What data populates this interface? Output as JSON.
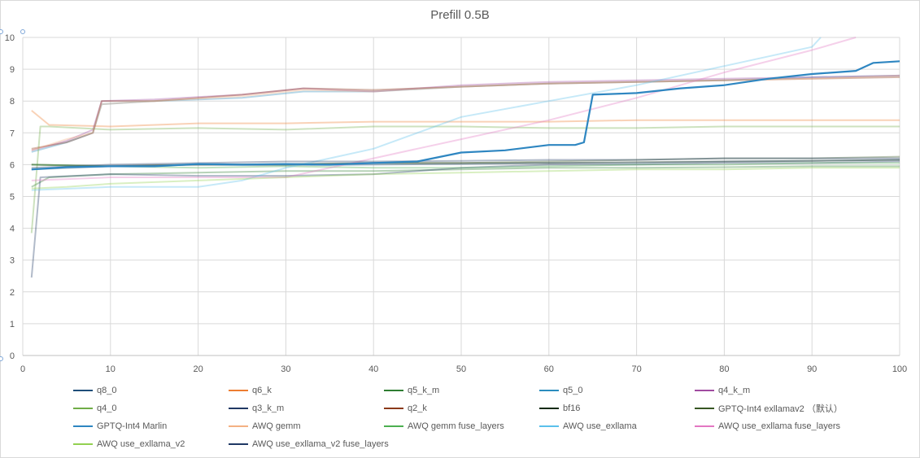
{
  "chart_data": {
    "type": "line",
    "title": "Prefill 0.5B",
    "xlabel": "",
    "ylabel": "",
    "xlim": [
      0,
      100
    ],
    "ylim": [
      0,
      10
    ],
    "x_ticks": [
      0,
      10,
      20,
      30,
      40,
      50,
      60,
      70,
      80,
      90,
      100
    ],
    "y_ticks": [
      0,
      1,
      2,
      3,
      4,
      5,
      6,
      7,
      8,
      9,
      10
    ],
    "grid": true,
    "legend_position": "bottom",
    "highlighted_series": "GPTQ-Int4 Marlin",
    "series": [
      {
        "name": "q8_0",
        "color": "#1f4e79",
        "points": [
          [
            1,
            5.85
          ],
          [
            10,
            5.95
          ],
          [
            20,
            6.0
          ],
          [
            30,
            5.98
          ],
          [
            40,
            6.0
          ],
          [
            50,
            6.02
          ],
          [
            60,
            6.05
          ],
          [
            70,
            6.05
          ],
          [
            80,
            6.1
          ],
          [
            90,
            6.12
          ],
          [
            100,
            6.15
          ]
        ]
      },
      {
        "name": "q6_k",
        "color": "#ed7d31",
        "points": [
          [
            1,
            7.7
          ],
          [
            3,
            7.25
          ],
          [
            10,
            7.2
          ],
          [
            20,
            7.3
          ],
          [
            30,
            7.3
          ],
          [
            40,
            7.35
          ],
          [
            50,
            7.35
          ],
          [
            60,
            7.35
          ],
          [
            70,
            7.4
          ],
          [
            80,
            7.4
          ],
          [
            90,
            7.4
          ],
          [
            100,
            7.4
          ]
        ]
      },
      {
        "name": "q5_k_m",
        "color": "#2e7d32",
        "points": [
          [
            1,
            5.3
          ],
          [
            3,
            5.6
          ],
          [
            10,
            5.7
          ],
          [
            20,
            5.75
          ],
          [
            30,
            5.8
          ],
          [
            40,
            5.8
          ],
          [
            50,
            5.85
          ],
          [
            60,
            5.9
          ],
          [
            70,
            5.9
          ],
          [
            80,
            5.92
          ],
          [
            90,
            5.95
          ],
          [
            100,
            5.95
          ]
        ]
      },
      {
        "name": "q5_0",
        "color": "#2b8cbe",
        "points": [
          [
            1,
            6.4
          ],
          [
            5,
            6.7
          ],
          [
            8,
            7.0
          ],
          [
            9,
            7.9
          ],
          [
            15,
            8.0
          ],
          [
            25,
            8.1
          ],
          [
            32,
            8.3
          ],
          [
            40,
            8.3
          ],
          [
            50,
            8.45
          ],
          [
            60,
            8.55
          ],
          [
            70,
            8.6
          ],
          [
            80,
            8.65
          ],
          [
            90,
            8.75
          ],
          [
            100,
            8.8
          ]
        ]
      },
      {
        "name": "q4_k_m",
        "color": "#a04ba0",
        "points": [
          [
            1,
            6.45
          ],
          [
            5,
            6.75
          ],
          [
            8,
            7.1
          ],
          [
            9,
            8.0
          ],
          [
            15,
            8.05
          ],
          [
            25,
            8.2
          ],
          [
            32,
            8.4
          ],
          [
            40,
            8.3
          ],
          [
            50,
            8.5
          ],
          [
            60,
            8.6
          ],
          [
            70,
            8.65
          ],
          [
            80,
            8.7
          ],
          [
            90,
            8.75
          ],
          [
            100,
            8.8
          ]
        ]
      },
      {
        "name": "q4_0",
        "color": "#70ad47",
        "points": [
          [
            1,
            3.85
          ],
          [
            2,
            7.2
          ],
          [
            3,
            7.2
          ],
          [
            10,
            7.1
          ],
          [
            20,
            7.15
          ],
          [
            30,
            7.1
          ],
          [
            40,
            7.2
          ],
          [
            50,
            7.2
          ],
          [
            60,
            7.15
          ],
          [
            70,
            7.15
          ],
          [
            80,
            7.2
          ],
          [
            90,
            7.2
          ],
          [
            100,
            7.2
          ]
        ]
      },
      {
        "name": "q3_k_m",
        "color": "#203864",
        "points": [
          [
            1,
            2.45
          ],
          [
            2,
            5.6
          ],
          [
            10,
            5.7
          ],
          [
            20,
            5.65
          ],
          [
            30,
            5.65
          ],
          [
            40,
            5.7
          ],
          [
            50,
            5.9
          ],
          [
            60,
            6.0
          ],
          [
            70,
            6.0
          ],
          [
            80,
            6.05
          ],
          [
            90,
            6.05
          ],
          [
            100,
            6.1
          ]
        ]
      },
      {
        "name": "q2_k",
        "color": "#8b3a1a",
        "points": [
          [
            1,
            6.5
          ],
          [
            5,
            6.7
          ],
          [
            8,
            7.0
          ],
          [
            9,
            8.0
          ],
          [
            15,
            8.0
          ],
          [
            25,
            8.2
          ],
          [
            32,
            8.4
          ],
          [
            40,
            8.35
          ],
          [
            50,
            8.45
          ],
          [
            60,
            8.55
          ],
          [
            70,
            8.6
          ],
          [
            80,
            8.65
          ],
          [
            90,
            8.7
          ],
          [
            100,
            8.75
          ]
        ]
      },
      {
        "name": "bf16",
        "color": "#102a10",
        "points": [
          [
            1,
            6.0
          ],
          [
            10,
            5.95
          ],
          [
            20,
            6.0
          ],
          [
            30,
            6.02
          ],
          [
            40,
            6.05
          ],
          [
            50,
            6.05
          ],
          [
            60,
            6.05
          ],
          [
            70,
            6.08
          ],
          [
            80,
            6.1
          ],
          [
            90,
            6.12
          ],
          [
            100,
            6.15
          ]
        ]
      },
      {
        "name": "GPTQ-Int4 exllamav2 （默认）",
        "color": "#375623",
        "points": [
          [
            1,
            6.0
          ],
          [
            10,
            5.95
          ],
          [
            20,
            6.0
          ],
          [
            30,
            6.0
          ],
          [
            40,
            6.05
          ],
          [
            50,
            6.05
          ],
          [
            60,
            6.1
          ],
          [
            70,
            6.15
          ],
          [
            80,
            6.2
          ],
          [
            90,
            6.2
          ],
          [
            100,
            6.25
          ]
        ]
      },
      {
        "name": "GPTQ-Int4 Marlin",
        "color": "#2e86c1",
        "points": [
          [
            1,
            5.85
          ],
          [
            5,
            5.92
          ],
          [
            10,
            5.95
          ],
          [
            15,
            5.95
          ],
          [
            20,
            6.02
          ],
          [
            25,
            6.0
          ],
          [
            30,
            6.02
          ],
          [
            35,
            6.0
          ],
          [
            40,
            6.05
          ],
          [
            45,
            6.1
          ],
          [
            50,
            6.38
          ],
          [
            55,
            6.45
          ],
          [
            60,
            6.62
          ],
          [
            63,
            6.62
          ],
          [
            64,
            6.7
          ],
          [
            65,
            8.2
          ],
          [
            70,
            8.25
          ],
          [
            75,
            8.4
          ],
          [
            80,
            8.5
          ],
          [
            85,
            8.7
          ],
          [
            90,
            8.85
          ],
          [
            95,
            8.95
          ],
          [
            97,
            9.2
          ],
          [
            100,
            9.25
          ]
        ]
      },
      {
        "name": "AWQ gemm",
        "color": "#f4b183",
        "points": [
          [
            1,
            6.45
          ],
          [
            5,
            6.8
          ],
          [
            8,
            7.0
          ],
          [
            9,
            7.9
          ],
          [
            15,
            8.0
          ],
          [
            25,
            8.15
          ],
          [
            32,
            8.35
          ],
          [
            40,
            8.3
          ],
          [
            50,
            8.45
          ],
          [
            60,
            8.55
          ],
          [
            70,
            8.6
          ],
          [
            80,
            8.65
          ],
          [
            90,
            8.7
          ],
          [
            100,
            8.8
          ]
        ]
      },
      {
        "name": "AWQ gemm fuse_layers",
        "color": "#4caf50",
        "points": [
          [
            1,
            6.0
          ],
          [
            10,
            5.95
          ],
          [
            20,
            5.9
          ],
          [
            30,
            5.95
          ],
          [
            40,
            5.9
          ],
          [
            50,
            5.9
          ],
          [
            60,
            5.95
          ],
          [
            70,
            6.0
          ],
          [
            80,
            6.0
          ],
          [
            90,
            6.05
          ],
          [
            100,
            6.05
          ]
        ]
      },
      {
        "name": "AWQ use_exllama",
        "color": "#5bc0eb",
        "points": [
          [
            1,
            5.2
          ],
          [
            10,
            5.3
          ],
          [
            20,
            5.3
          ],
          [
            25,
            5.5
          ],
          [
            30,
            5.9
          ],
          [
            35,
            6.2
          ],
          [
            40,
            6.5
          ],
          [
            50,
            7.5
          ],
          [
            60,
            8.0
          ],
          [
            70,
            8.5
          ],
          [
            80,
            9.1
          ],
          [
            90,
            9.7
          ],
          [
            91,
            10.0
          ]
        ]
      },
      {
        "name": "AWQ use_exllama fuse_layers",
        "color": "#e377c2",
        "points": [
          [
            1,
            5.5
          ],
          [
            10,
            5.6
          ],
          [
            20,
            5.6
          ],
          [
            30,
            5.6
          ],
          [
            35,
            5.9
          ],
          [
            40,
            6.2
          ],
          [
            45,
            6.5
          ],
          [
            50,
            6.8
          ],
          [
            60,
            7.4
          ],
          [
            70,
            8.1
          ],
          [
            80,
            8.9
          ],
          [
            90,
            9.6
          ],
          [
            95,
            10.0
          ]
        ]
      },
      {
        "name": "AWQ use_exllama_v2",
        "color": "#92d050",
        "points": [
          [
            1,
            5.25
          ],
          [
            5,
            5.3
          ],
          [
            10,
            5.4
          ],
          [
            20,
            5.5
          ],
          [
            30,
            5.6
          ],
          [
            40,
            5.7
          ],
          [
            50,
            5.75
          ],
          [
            60,
            5.8
          ],
          [
            70,
            5.85
          ],
          [
            80,
            5.85
          ],
          [
            90,
            5.9
          ],
          [
            100,
            5.9
          ]
        ]
      },
      {
        "name": "AWQ use_exllama_v2 fuse_layers",
        "color": "#1f3864",
        "points": [
          [
            1,
            5.9
          ],
          [
            10,
            6.0
          ],
          [
            20,
            6.05
          ],
          [
            30,
            6.1
          ],
          [
            40,
            6.1
          ],
          [
            50,
            6.12
          ],
          [
            60,
            6.15
          ],
          [
            70,
            6.15
          ],
          [
            80,
            6.2
          ],
          [
            90,
            6.2
          ],
          [
            100,
            6.2
          ]
        ]
      }
    ]
  }
}
